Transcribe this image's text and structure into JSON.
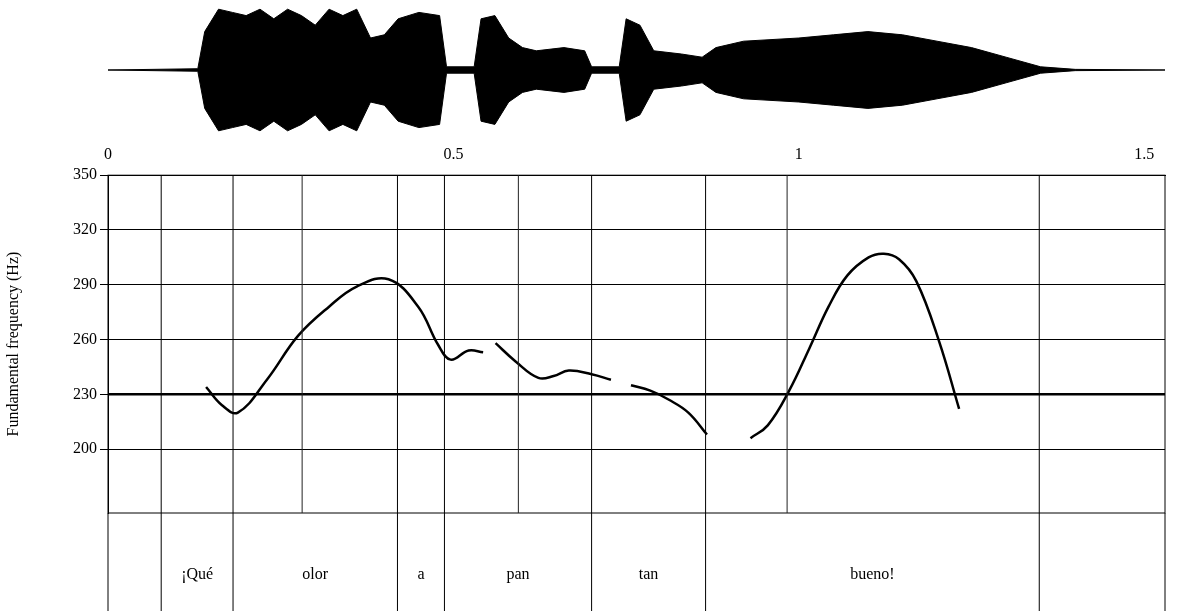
{
  "chart_data": {
    "type": "line",
    "y_label": "Fundamental frequency (Hz)",
    "color": "#000000",
    "x": [
      0.142,
      0.165,
      0.188,
      0.23,
      0.275,
      0.32,
      0.36,
      0.406,
      0.449,
      0.478,
      0.496,
      0.522,
      0.543,
      0.552,
      0.561,
      0.59,
      0.623,
      0.645,
      0.667,
      0.7,
      0.728,
      0.742,
      0.757,
      0.785,
      0.812,
      0.84,
      0.867,
      0.9,
      0.93,
      0.955,
      0.986,
      1.015,
      1.043,
      1.07,
      1.101,
      1.123,
      1.145,
      1.17,
      1.203,
      1.232
    ],
    "values": [
      234,
      224,
      220,
      238,
      262,
      278,
      289,
      293,
      278,
      257,
      249,
      254,
      253,
      null,
      258,
      248,
      239,
      240,
      243,
      241,
      238,
      null,
      235,
      232,
      227,
      220,
      208,
      null,
      206,
      213,
      232,
      255,
      278,
      295,
      305,
      307,
      304,
      292,
      259,
      222
    ],
    "xlim": [
      0,
      1.53
    ],
    "xticks": [
      0,
      0.5,
      1,
      1.5
    ],
    "ylim": [
      165,
      350
    ],
    "yticks": [
      200,
      230,
      260,
      290,
      320,
      350
    ],
    "grid": true,
    "reference_line": 230,
    "marks": [
      0.281,
      0.594,
      0.983
    ],
    "intervals": [
      {
        "start": 0.077,
        "end": 0.181,
        "label": "¡Qué"
      },
      {
        "start": 0.181,
        "end": 0.419,
        "label": "olor"
      },
      {
        "start": 0.419,
        "end": 0.487,
        "label": "a"
      },
      {
        "start": 0.487,
        "end": 0.7,
        "label": "pan"
      },
      {
        "start": 0.7,
        "end": 0.865,
        "label": "tan"
      },
      {
        "start": 0.865,
        "end": 1.348,
        "label": "bueno!"
      }
    ],
    "waveform": {
      "x": [
        0,
        0.13,
        0.14,
        0.16,
        0.18,
        0.2,
        0.22,
        0.24,
        0.26,
        0.28,
        0.3,
        0.32,
        0.34,
        0.36,
        0.38,
        0.4,
        0.42,
        0.45,
        0.48,
        0.49,
        0.53,
        0.54,
        0.56,
        0.58,
        0.6,
        0.62,
        0.66,
        0.69,
        0.7,
        0.74,
        0.75,
        0.77,
        0.79,
        0.83,
        0.86,
        0.88,
        0.92,
        1.0,
        1.05,
        1.1,
        1.15,
        1.2,
        1.25,
        1.3,
        1.35,
        1.4,
        1.53
      ],
      "values": [
        0,
        0.02,
        0.6,
        0.95,
        0.9,
        0.85,
        0.95,
        0.8,
        0.95,
        0.85,
        0.7,
        0.95,
        0.85,
        0.95,
        0.5,
        0.55,
        0.8,
        0.9,
        0.85,
        0.05,
        0.05,
        0.8,
        0.85,
        0.5,
        0.35,
        0.3,
        0.35,
        0.3,
        0.05,
        0.05,
        0.8,
        0.7,
        0.3,
        0.25,
        0.2,
        0.35,
        0.45,
        0.5,
        0.55,
        0.6,
        0.55,
        0.45,
        0.35,
        0.2,
        0.05,
        0.01,
        0
      ]
    }
  }
}
